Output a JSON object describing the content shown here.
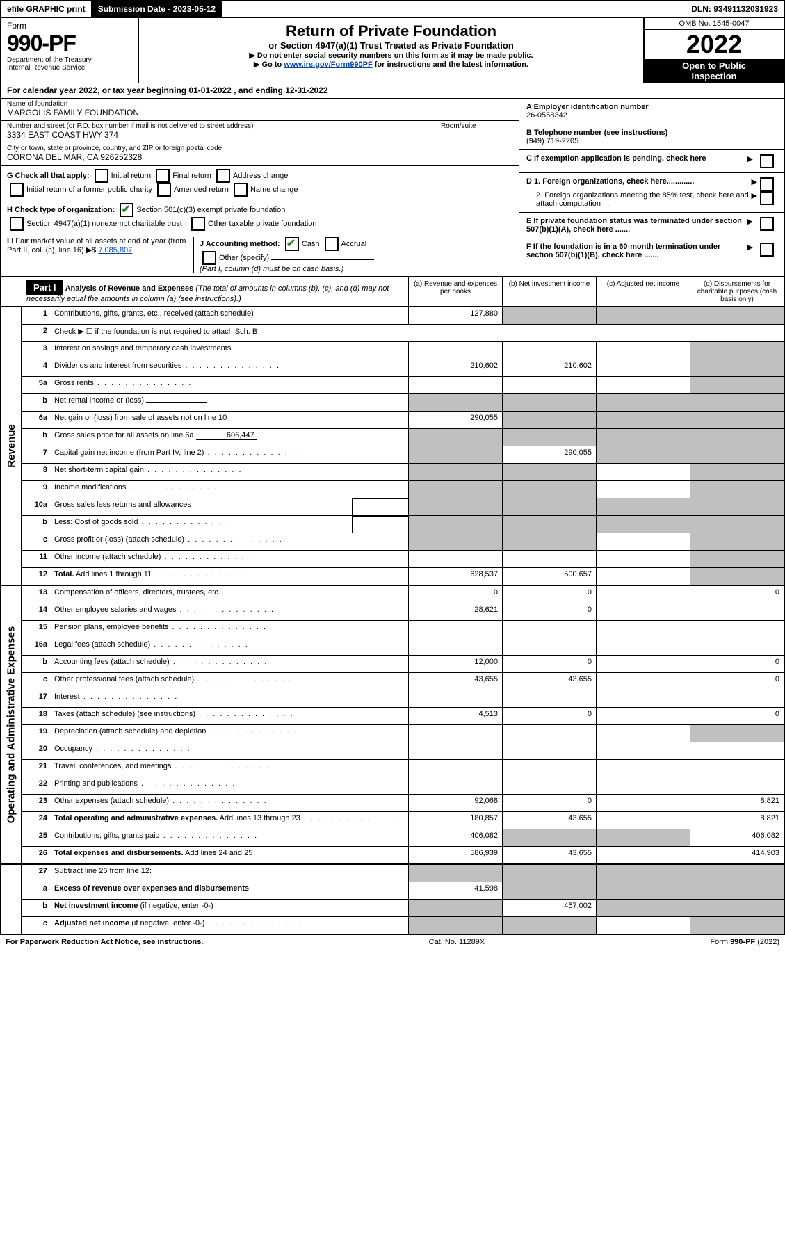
{
  "topbar": {
    "efile_label": "efile GRAPHIC print",
    "submission_label": "Submission Date - 2023-05-12",
    "dln_label": "DLN: 93491132031923"
  },
  "header": {
    "form_word": "Form",
    "form_number": "990-PF",
    "dept1": "Department of the Treasury",
    "dept2": "Internal Revenue Service",
    "title": "Return of Private Foundation",
    "subtitle": "or Section 4947(a)(1) Trust Treated as Private Foundation",
    "instr1": "Do not enter social security numbers on this form as it may be made public.",
    "instr2_pre": "Go to ",
    "instr2_link": "www.irs.gov/Form990PF",
    "instr2_post": " for instructions and the latest information.",
    "omb": "OMB No. 1545-0047",
    "year": "2022",
    "open1": "Open to Public",
    "open2": "Inspection"
  },
  "calyear": {
    "pre": "For calendar year 2022, or tax year beginning ",
    "begin": "01-01-2022",
    "mid": " , and ending ",
    "end": "12-31-2022"
  },
  "id": {
    "name_label": "Name of foundation",
    "name_value": "MARGOLIS FAMILY FOUNDATION",
    "addr_label": "Number and street (or P.O. box number if mail is not delivered to street address)",
    "room_label": "Room/suite",
    "addr_value": "3334 EAST COAST HWY 374",
    "city_label": "City or town, state or province, country, and ZIP or foreign postal code",
    "city_value": "CORONA DEL MAR, CA  926252328",
    "a_label": "A Employer identification number",
    "a_value": "26-0558342",
    "b_label": "B Telephone number (see instructions)",
    "b_value": "(949) 719-2205",
    "c_label": "C If exemption application is pending, check here",
    "d1_label": "D 1. Foreign organizations, check here.............",
    "d2_label": "2. Foreign organizations meeting the 85% test, check here and attach computation ...",
    "e_label": "E If private foundation status was terminated under section 507(b)(1)(A), check here .......",
    "f_label": "F If the foundation is in a 60-month termination under section 507(b)(1)(B), check here ......."
  },
  "g": {
    "label": "G Check all that apply:",
    "opts": [
      "Initial return",
      "Final return",
      "Address change",
      "Initial return of a former public charity",
      "Amended return",
      "Name change"
    ]
  },
  "h": {
    "label": "H Check type of organization:",
    "opt1": "Section 501(c)(3) exempt private foundation",
    "opt2": "Section 4947(a)(1) nonexempt charitable trust",
    "opt3": "Other taxable private foundation"
  },
  "i": {
    "label": "I Fair market value of all assets at end of year (from Part II, col. (c), line 16)",
    "value": "7,085,807"
  },
  "j": {
    "label": "J Accounting method:",
    "cash": "Cash",
    "accrual": "Accrual",
    "other": "Other (specify)",
    "note": "(Part I, column (d) must be on cash basis.)"
  },
  "part1": {
    "label": "Part I",
    "title": "Analysis of Revenue and Expenses",
    "title_note": " (The total of amounts in columns (b), (c), and (d) may not necessarily equal the amounts in column (a) (see instructions).)",
    "col_a": "(a) Revenue and expenses per books",
    "col_b": "(b) Net investment income",
    "col_c": "(c) Adjusted net income",
    "col_d": "(d) Disbursements for charitable purposes (cash basis only)"
  },
  "sections": {
    "revenue": "Revenue",
    "opex": "Operating and Administrative Expenses"
  },
  "rows": [
    {
      "n": "1",
      "desc": "Contributions, gifts, grants, etc., received (attach schedule)",
      "a": "127,880",
      "b": "G",
      "c": "G",
      "d": "G"
    },
    {
      "n": "2",
      "desc": "Check ▶ ☐ if the foundation is <b>not</b> required to attach Sch. B",
      "nocell": true
    },
    {
      "n": "3",
      "desc": "Interest on savings and temporary cash investments",
      "a": "",
      "b": "",
      "c": "",
      "d": "G"
    },
    {
      "n": "4",
      "desc": "Dividends and interest from securities",
      "a": "210,602",
      "b": "210,602",
      "c": "",
      "d": "G",
      "dots": true
    },
    {
      "n": "5a",
      "desc": "Gross rents",
      "a": "",
      "b": "",
      "c": "",
      "d": "G",
      "dots": true
    },
    {
      "n": "b",
      "desc": "Net rental income or (loss)",
      "inline": "",
      "a": "G",
      "b": "G",
      "c": "G",
      "d": "G"
    },
    {
      "n": "6a",
      "desc": "Net gain or (loss) from sale of assets not on line 10",
      "a": "290,055",
      "b": "G",
      "c": "G",
      "d": "G"
    },
    {
      "n": "b",
      "desc": "Gross sales price for all assets on line 6a",
      "inline": "606,447",
      "a": "G",
      "b": "G",
      "c": "G",
      "d": "G"
    },
    {
      "n": "7",
      "desc": "Capital gain net income (from Part IV, line 2)",
      "a": "G",
      "b": "290,055",
      "c": "G",
      "d": "G",
      "dots": true
    },
    {
      "n": "8",
      "desc": "Net short-term capital gain",
      "a": "G",
      "b": "G",
      "c": "",
      "d": "G",
      "dots": true
    },
    {
      "n": "9",
      "desc": "Income modifications",
      "a": "G",
      "b": "G",
      "c": "",
      "d": "G",
      "dots": true
    },
    {
      "n": "10a",
      "desc": "Gross sales less returns and allowances",
      "subbox": true,
      "a": "G",
      "b": "G",
      "c": "G",
      "d": "G"
    },
    {
      "n": "b",
      "desc": "Less: Cost of goods sold",
      "subbox": true,
      "a": "G",
      "b": "G",
      "c": "G",
      "d": "G",
      "dots": true
    },
    {
      "n": "c",
      "desc": "Gross profit or (loss) (attach schedule)",
      "a": "G",
      "b": "G",
      "c": "",
      "d": "G",
      "dots": true
    },
    {
      "n": "11",
      "desc": "Other income (attach schedule)",
      "a": "",
      "b": "",
      "c": "",
      "d": "G",
      "dots": true
    },
    {
      "n": "12",
      "desc": "<b>Total.</b> Add lines 1 through 11",
      "a": "628,537",
      "b": "500,657",
      "c": "",
      "d": "G",
      "dots": true
    }
  ],
  "rows2": [
    {
      "n": "13",
      "desc": "Compensation of officers, directors, trustees, etc.",
      "a": "0",
      "b": "0",
      "c": "",
      "d": "0"
    },
    {
      "n": "14",
      "desc": "Other employee salaries and wages",
      "a": "28,621",
      "b": "0",
      "c": "",
      "d": "",
      "dots": true
    },
    {
      "n": "15",
      "desc": "Pension plans, employee benefits",
      "a": "",
      "b": "",
      "c": "",
      "d": "",
      "dots": true
    },
    {
      "n": "16a",
      "desc": "Legal fees (attach schedule)",
      "a": "",
      "b": "",
      "c": "",
      "d": "",
      "dots": true
    },
    {
      "n": "b",
      "desc": "Accounting fees (attach schedule)",
      "a": "12,000",
      "b": "0",
      "c": "",
      "d": "0",
      "dots": true
    },
    {
      "n": "c",
      "desc": "Other professional fees (attach schedule)",
      "a": "43,655",
      "b": "43,655",
      "c": "",
      "d": "0",
      "dots": true
    },
    {
      "n": "17",
      "desc": "Interest",
      "a": "",
      "b": "",
      "c": "",
      "d": "",
      "dots": true
    },
    {
      "n": "18",
      "desc": "Taxes (attach schedule) (see instructions)",
      "a": "4,513",
      "b": "0",
      "c": "",
      "d": "0",
      "dots": true
    },
    {
      "n": "19",
      "desc": "Depreciation (attach schedule) and depletion",
      "a": "",
      "b": "",
      "c": "",
      "d": "G",
      "dots": true
    },
    {
      "n": "20",
      "desc": "Occupancy",
      "a": "",
      "b": "",
      "c": "",
      "d": "",
      "dots": true
    },
    {
      "n": "21",
      "desc": "Travel, conferences, and meetings",
      "a": "",
      "b": "",
      "c": "",
      "d": "",
      "dots": true
    },
    {
      "n": "22",
      "desc": "Printing and publications",
      "a": "",
      "b": "",
      "c": "",
      "d": "",
      "dots": true
    },
    {
      "n": "23",
      "desc": "Other expenses (attach schedule)",
      "a": "92,068",
      "b": "0",
      "c": "",
      "d": "8,821",
      "dots": true
    },
    {
      "n": "24",
      "desc": "<b>Total operating and administrative expenses.</b> Add lines 13 through 23",
      "a": "180,857",
      "b": "43,655",
      "c": "",
      "d": "8,821",
      "dots": true
    },
    {
      "n": "25",
      "desc": "Contributions, gifts, grants paid",
      "a": "406,082",
      "b": "G",
      "c": "G",
      "d": "406,082",
      "dots": true
    },
    {
      "n": "26",
      "desc": "<b>Total expenses and disbursements.</b> Add lines 24 and 25",
      "a": "586,939",
      "b": "43,655",
      "c": "",
      "d": "414,903"
    }
  ],
  "rows3": [
    {
      "n": "27",
      "desc": "Subtract line 26 from line 12:",
      "a": "G",
      "b": "G",
      "c": "G",
      "d": "G"
    },
    {
      "n": "a",
      "desc": "<b>Excess of revenue over expenses and disbursements</b>",
      "a": "41,598",
      "b": "G",
      "c": "G",
      "d": "G"
    },
    {
      "n": "b",
      "desc": "<b>Net investment income</b> (if negative, enter -0-)",
      "a": "G",
      "b": "457,002",
      "c": "G",
      "d": "G"
    },
    {
      "n": "c",
      "desc": "<b>Adjusted net income</b> (if negative, enter -0-)",
      "a": "G",
      "b": "G",
      "c": "",
      "d": "G",
      "dots": true
    }
  ],
  "footer": {
    "left": "For Paperwork Reduction Act Notice, see instructions.",
    "mid": "Cat. No. 11289X",
    "right": "Form 990-PF (2022)"
  }
}
